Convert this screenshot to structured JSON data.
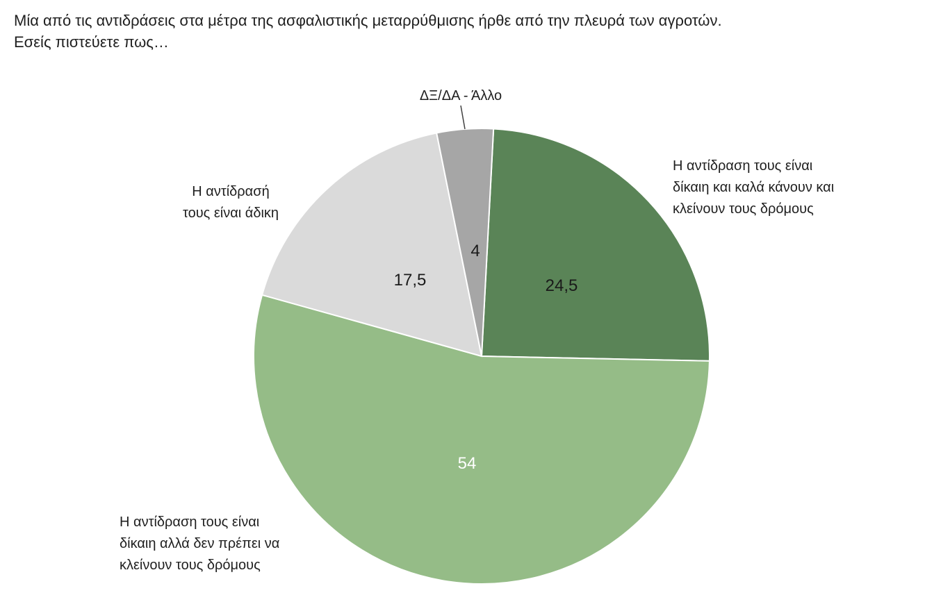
{
  "title": {
    "line1": "Μία από τις αντιδράσεις στα μέτρα της ασφαλιστικής μεταρρύθμισης ήρθε από την πλευρά των αγροτών.",
    "line2": "Εσείς πιστεύετε πως…"
  },
  "chart_data": {
    "type": "pie",
    "title": "Μία από τις αντιδράσεις στα μέτρα της ασφαλιστικής μεταρρύθμισης ήρθε από την πλευρά των αγροτών. Εσείς πιστεύετε πως…",
    "slices": [
      {
        "name": "Η αντίδραση τους είναι δίκαιη και καλά κάνουν και κλείνουν τους δρόμους",
        "label_lines": [
          "Η αντίδραση τους είναι",
          "δίκαιη και καλά κάνουν και",
          "κλείνουν τους δρόμους"
        ],
        "value": 24.5,
        "value_label": "24,5",
        "color": "#5a8457",
        "value_color": "#1a1a1a"
      },
      {
        "name": "Η αντίδραση τους είναι δίκαιη αλλά δεν πρέπει να κλείνουν τους δρόμους",
        "label_lines": [
          "Η αντίδραση τους είναι",
          "δίκαιη αλλά δεν πρέπει να",
          "κλείνουν τους δρόμους"
        ],
        "value": 54,
        "value_label": "54",
        "color": "#95bc87",
        "value_color": "#ffffff"
      },
      {
        "name": "Η αντίδρασή τους είναι άδικη",
        "label_lines": [
          "Η αντίδρασή",
          "τους είναι άδικη"
        ],
        "value": 17.5,
        "value_label": "17,5",
        "color": "#dadada",
        "value_color": "#1a1a1a"
      },
      {
        "name": "ΔΞ/ΔΑ - Άλλο",
        "label_lines": [
          "ΔΞ/ΔΑ - Άλλο"
        ],
        "value": 4,
        "value_label": "4",
        "color": "#a6a6a6",
        "value_color": "#1a1a1a"
      }
    ],
    "start_angle_deg": 3,
    "direction": "clockwise"
  }
}
